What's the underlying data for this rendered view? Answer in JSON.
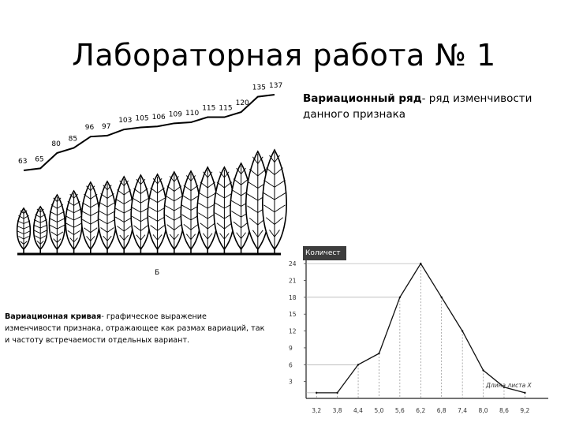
{
  "slide": {
    "title": "Лабораторная работа № 1",
    "definition_term": "Вариационный ряд",
    "definition_text": "- ряд изменчивости данного признака",
    "curve_term": "Вариационная кривая",
    "curve_text": "- графическое выражение изменчивости признака, отражающее как размах вариаций, так и частоту встречаемости отдельных вариант."
  },
  "leaf_figure": {
    "values": [
      "63",
      "65",
      "80",
      "85",
      "96",
      "97",
      "103",
      "105",
      "106",
      "109",
      "110",
      "115",
      "115",
      "120",
      "135",
      "137"
    ],
    "caption": "Б"
  },
  "chart_data": {
    "type": "line",
    "title": "",
    "ylabel": "Количест",
    "xlabel": "Длина листа X",
    "y_ticks": [
      "3",
      "6",
      "9",
      "12",
      "15",
      "18",
      "21",
      "24"
    ],
    "x_tick_labels": [
      "3,2",
      "3,8",
      "4,4",
      "5,0",
      "5,6",
      "6,2",
      "6,8",
      "7,4",
      "8,0",
      "8,6",
      "9,2"
    ],
    "x": [
      3.2,
      3.8,
      4.4,
      5.0,
      5.6,
      6.2,
      6.8,
      7.4,
      8.0,
      8.6,
      9.2
    ],
    "values": [
      1,
      1,
      6,
      8,
      18,
      24,
      18,
      12,
      5,
      2,
      1
    ],
    "ylim": [
      0,
      25
    ],
    "grid": false
  }
}
